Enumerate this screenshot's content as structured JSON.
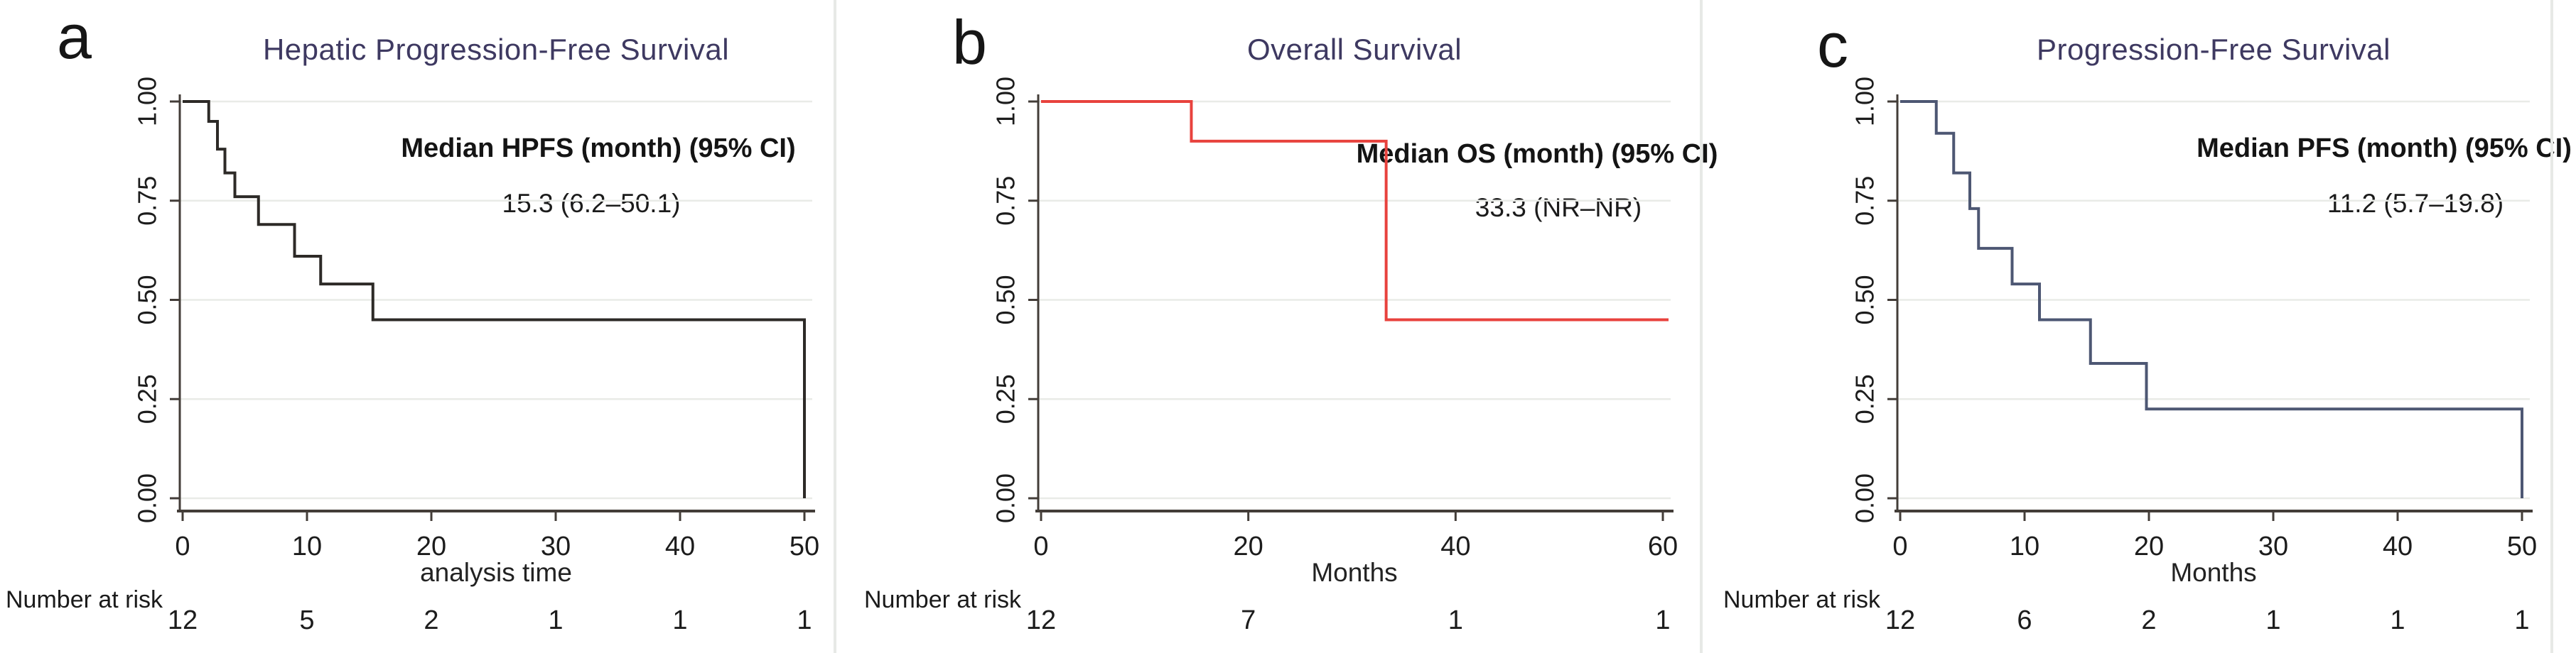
{
  "figure": {
    "colors": {
      "title": "#3e3961",
      "axis": "#433d38",
      "grid": "#e9ebe7",
      "tick_text": "#1c1c1c",
      "divider": "#e7e9e6"
    }
  },
  "chart_data": [
    {
      "type": "line",
      "subtype": "kaplan-meier-step",
      "panel_label": "a",
      "title": "Hepatic Progression-Free Survival",
      "annotation_title": "Median HPFS (month) (95% CI)",
      "annotation_value": "15.3 (6.2–50.1)",
      "xlabel": "analysis time",
      "ylabel": "",
      "line_color": "#2d2a27",
      "grid": true,
      "xlim": [
        0,
        51
      ],
      "ylim": [
        0,
        1
      ],
      "xticks": [
        0,
        10,
        20,
        30,
        40,
        50
      ],
      "yticks": [
        0,
        0.25,
        0.5,
        0.75,
        1
      ],
      "ytick_labels": [
        "0.00",
        "0.25",
        "0.50",
        "0.75",
        "1.00"
      ],
      "steps": [
        [
          0,
          1.0
        ],
        [
          2.1,
          0.95
        ],
        [
          2.8,
          0.88
        ],
        [
          3.4,
          0.82
        ],
        [
          4.2,
          0.76
        ],
        [
          6.1,
          0.69
        ],
        [
          9.0,
          0.61
        ],
        [
          11.1,
          0.54
        ],
        [
          15.3,
          0.45
        ],
        [
          50,
          0
        ]
      ],
      "number_at_risk": {
        "label": "Number at risk",
        "times": [
          0,
          10,
          20,
          30,
          40,
          50
        ],
        "values": [
          "12",
          "5",
          "2",
          "1",
          "1",
          "1"
        ]
      }
    },
    {
      "type": "line",
      "subtype": "kaplan-meier-step",
      "panel_label": "b",
      "title": "Overall Survival",
      "annotation_title": "Median OS (month) (95% CI)",
      "annotation_value": "33.3 (NR–NR)",
      "xlabel": "Months",
      "ylabel": "",
      "line_color": "#e8423d",
      "grid": true,
      "xlim": [
        0,
        62
      ],
      "ylim": [
        0,
        1
      ],
      "xticks": [
        0,
        20,
        40,
        60
      ],
      "yticks": [
        0,
        0.25,
        0.5,
        0.75,
        1
      ],
      "ytick_labels": [
        "0.00",
        "0.25",
        "0.50",
        "0.75",
        "1.00"
      ],
      "steps": [
        [
          0,
          1.0
        ],
        [
          14.5,
          0.9
        ],
        [
          33.3,
          0.45
        ],
        [
          61,
          0.45
        ]
      ],
      "number_at_risk": {
        "label": "Number at risk",
        "times": [
          0,
          20,
          40,
          60
        ],
        "values": [
          "12",
          "7",
          "1",
          "1"
        ]
      }
    },
    {
      "type": "line",
      "subtype": "kaplan-meier-step",
      "panel_label": "c",
      "title": "Progression-Free Survival",
      "annotation_title": "Median PFS (month) (95% CI)",
      "annotation_value": "11.2 (5.7–19.8)",
      "xlabel": "Months",
      "ylabel": "",
      "line_color": "#4d5773",
      "grid": true,
      "xlim": [
        0,
        51
      ],
      "ylim": [
        0,
        1
      ],
      "xticks": [
        0,
        10,
        20,
        30,
        40,
        50
      ],
      "yticks": [
        0,
        0.25,
        0.5,
        0.75,
        1
      ],
      "ytick_labels": [
        "0.00",
        "0.25",
        "0.50",
        "0.75",
        "1.00"
      ],
      "steps": [
        [
          0,
          1.0
        ],
        [
          2.9,
          0.92
        ],
        [
          4.3,
          0.82
        ],
        [
          5.6,
          0.73
        ],
        [
          6.3,
          0.63
        ],
        [
          9.0,
          0.54
        ],
        [
          11.2,
          0.45
        ],
        [
          15.3,
          0.34
        ],
        [
          19.8,
          0.225
        ],
        [
          50,
          0
        ]
      ],
      "number_at_risk": {
        "label": "Number at risk",
        "times": [
          0,
          10,
          20,
          30,
          40,
          50
        ],
        "values": [
          "12",
          "6",
          "2",
          "1",
          "1",
          "1"
        ]
      }
    }
  ]
}
